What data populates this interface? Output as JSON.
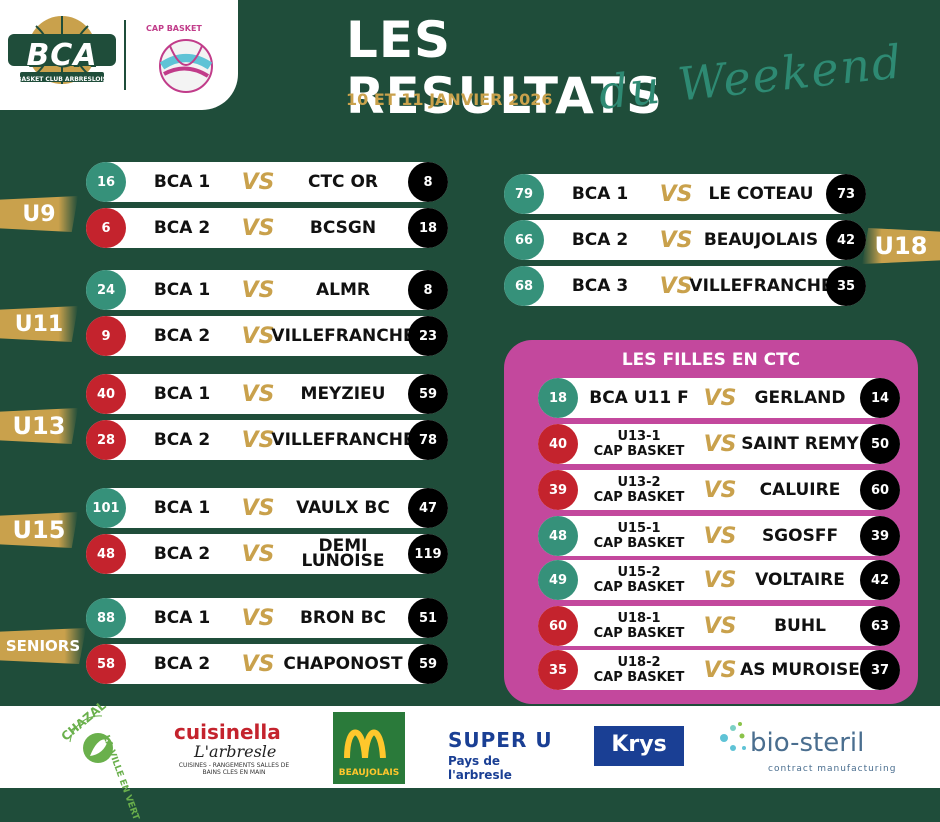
{
  "header": {
    "bca_logo_text": "BCA",
    "bca_logo_sub": "BASKET CLUB ARBRESLOIS",
    "cap_logo_text": "CAP BASKET",
    "title": "LES RESULTATS",
    "script_subtitle": "du Weekend",
    "date": "10 ET 11 JANVIER 2026"
  },
  "vs_label": "VS",
  "categories": [
    {
      "label": "U9",
      "matches": [
        {
          "home_score": "16",
          "home": "BCA 1",
          "away": "CTC OR",
          "away_score": "8",
          "result": "win"
        },
        {
          "home_score": "6",
          "home": "BCA 2",
          "away": "BCSGN",
          "away_score": "18",
          "result": "loss"
        }
      ]
    },
    {
      "label": "U11",
      "matches": [
        {
          "home_score": "24",
          "home": "BCA 1",
          "away": "ALMR",
          "away_score": "8",
          "result": "win"
        },
        {
          "home_score": "9",
          "home": "BCA 2",
          "away": "VILLEFRANCHE",
          "away_score": "23",
          "result": "loss"
        }
      ]
    },
    {
      "label": "U13",
      "matches": [
        {
          "home_score": "40",
          "home": "BCA 1",
          "away": "MEYZIEU",
          "away_score": "59",
          "result": "loss"
        },
        {
          "home_score": "28",
          "home": "BCA 2",
          "away": "VILLEFRANCHE",
          "away_score": "78",
          "result": "loss"
        }
      ]
    },
    {
      "label": "U15",
      "matches": [
        {
          "home_score": "101",
          "home": "BCA 1",
          "away": "VAULX BC",
          "away_score": "47",
          "result": "win"
        },
        {
          "home_score": "48",
          "home": "BCA 2",
          "away": "DEMI LUNOISE",
          "away_score": "119",
          "result": "loss"
        }
      ]
    },
    {
      "label": "SENIORS",
      "matches": [
        {
          "home_score": "88",
          "home": "BCA 1",
          "away": "BRON BC",
          "away_score": "51",
          "result": "win"
        },
        {
          "home_score": "58",
          "home": "BCA 2",
          "away": "CHAPONOST",
          "away_score": "59",
          "result": "loss"
        }
      ]
    }
  ],
  "u18": {
    "label": "U18",
    "matches": [
      {
        "home_score": "79",
        "home": "BCA 1",
        "away": "LE COTEAU",
        "away_score": "73",
        "result": "win"
      },
      {
        "home_score": "66",
        "home": "BCA 2",
        "away": "BEAUJOLAIS",
        "away_score": "42",
        "result": "win"
      },
      {
        "home_score": "68",
        "home": "BCA 3",
        "away": "VILLEFRANCHE",
        "away_score": "35",
        "result": "win"
      }
    ]
  },
  "ctc": {
    "title": "LES FILLES EN CTC",
    "matches": [
      {
        "home_score": "18",
        "home_line1": "BCA U11 F",
        "home_line2": "",
        "away": "GERLAND",
        "away_score": "14",
        "result": "win"
      },
      {
        "home_score": "40",
        "home_line1": "U13-1",
        "home_line2": "CAP BASKET",
        "away": "SAINT REMY",
        "away_score": "50",
        "result": "loss"
      },
      {
        "home_score": "39",
        "home_line1": "U13-2",
        "home_line2": "CAP BASKET",
        "away": "CALUIRE",
        "away_score": "60",
        "result": "loss"
      },
      {
        "home_score": "48",
        "home_line1": "U15-1",
        "home_line2": "CAP BASKET",
        "away": "SGOSFF",
        "away_score": "39",
        "result": "win"
      },
      {
        "home_score": "49",
        "home_line1": "U15-2",
        "home_line2": "CAP BASKET",
        "away": "VOLTAIRE",
        "away_score": "42",
        "result": "win"
      },
      {
        "home_score": "60",
        "home_line1": "U18-1",
        "home_line2": "CAP BASKET",
        "away": "BUHL",
        "away_score": "63",
        "result": "loss"
      },
      {
        "home_score": "35",
        "home_line1": "U18-2",
        "home_line2": "CAP BASKET",
        "away": "AS MUROISE",
        "away_score": "37",
        "result": "loss"
      }
    ]
  },
  "sponsors": {
    "chazal_name": "CHAZAL",
    "chazal_tag": "LA VILLE EN VERT",
    "cuisinella_name": "cuisinella",
    "cuisinella_city": "L'arbresle",
    "cuisinella_tag": "CUISINES - RANGEMENTS SALLES DE BAINS CLES EN MAIN",
    "mcdo_name": "BEAUJOLAIS",
    "superu_name": "SUPER U",
    "superu_tag": "Pays de l'arbresle",
    "krys_name": "Krys",
    "biosteril_name": "bio-steril",
    "biosteril_tag": "contract manufacturing"
  },
  "colors": {
    "background": "#1f4d3a",
    "gold": "#c9a14c",
    "win": "#36917a",
    "loss": "#c4232d",
    "ctc_panel": "#c3489d"
  }
}
